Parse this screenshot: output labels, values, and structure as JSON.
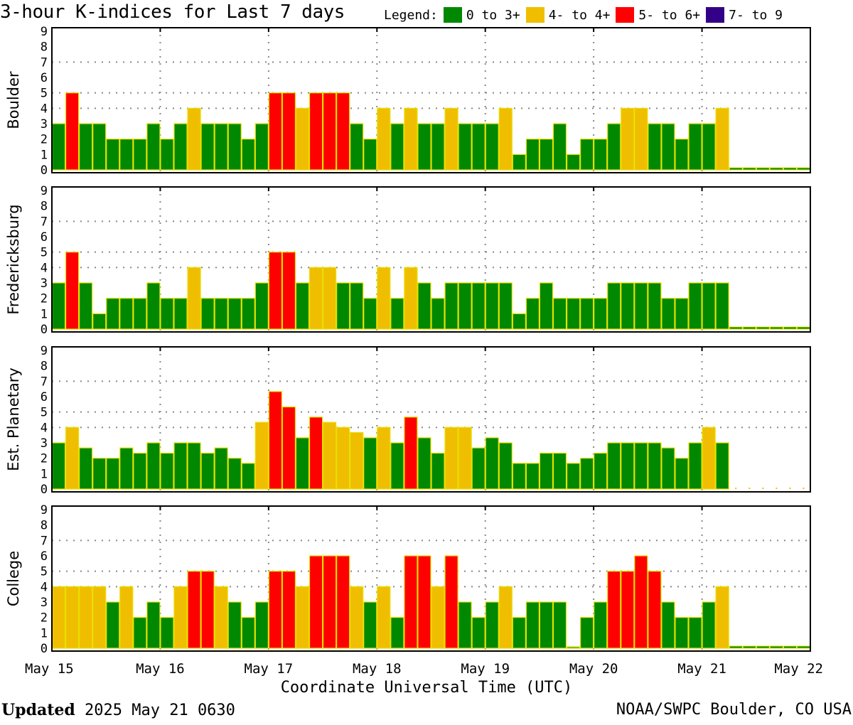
{
  "title": "3-hour K-indices for Last 7 days",
  "legend": {
    "label": "Legend:",
    "items": [
      {
        "label": "0 to 3+",
        "color": "#008800"
      },
      {
        "label": "4- to 4+",
        "color": "#f0be00"
      },
      {
        "label": "5- to 6+",
        "color": "#ff0000"
      },
      {
        "label": "7- to 9",
        "color": "#330088"
      }
    ]
  },
  "footer": {
    "updated_label": "Updated",
    "updated_value": "2025 May 21 0630",
    "credit": "NOAA/SWPC Boulder, CO USA"
  },
  "chart_data": {
    "type": "bar",
    "title": "3-hour K-indices for Last 7 days",
    "xlabel": "Coordinate Universal Time (UTC)",
    "x_ticks": [
      "May 15",
      "May 16",
      "May 17",
      "May 18",
      "May 19",
      "May 20",
      "May 21",
      "May 22"
    ],
    "y_ticks": [
      "0",
      "1",
      "2",
      "3",
      "4",
      "5",
      "6",
      "7",
      "8",
      "9"
    ],
    "ylim": [
      0,
      9
    ],
    "bins_per_day": 8,
    "total_bins": 56,
    "panels": [
      {
        "name": "Boulder",
        "values": [
          3,
          5,
          3,
          3,
          2,
          2,
          2,
          3,
          2,
          3,
          4,
          3,
          3,
          3,
          2,
          3,
          5,
          5,
          4,
          5,
          5,
          5,
          3,
          2,
          4,
          3,
          4,
          3,
          3,
          4,
          3,
          3,
          3,
          4,
          1,
          2,
          2,
          3,
          1,
          2,
          2,
          3,
          4,
          4,
          3,
          3,
          2,
          3,
          3,
          4
        ]
      },
      {
        "name": "Fredericksburg",
        "values": [
          3,
          5,
          3,
          1,
          2,
          2,
          2,
          3,
          2,
          2,
          4,
          2,
          2,
          2,
          2,
          3,
          5,
          5,
          3,
          4,
          4,
          3,
          3,
          2,
          4,
          2,
          4,
          3,
          2,
          3,
          3,
          3,
          3,
          3,
          1,
          2,
          3,
          2,
          2,
          2,
          2,
          3,
          3,
          3,
          3,
          2,
          2,
          3,
          3,
          3
        ]
      },
      {
        "name": "Est. Planetary",
        "values": [
          3,
          4,
          2.67,
          2,
          2,
          2.67,
          2.33,
          3,
          2.33,
          3,
          3,
          2.33,
          2.67,
          2,
          1.67,
          4.33,
          6.33,
          5.33,
          3.33,
          4.67,
          4.33,
          4,
          3.67,
          3.33,
          4,
          3,
          4.67,
          3.33,
          2.33,
          4,
          4,
          2.67,
          3.33,
          3,
          1.67,
          1.67,
          2.33,
          2.33,
          1.67,
          2,
          2.33,
          3,
          3,
          3,
          3,
          2.67,
          2,
          3,
          4,
          3
        ]
      },
      {
        "name": "College",
        "values": [
          4,
          4,
          4,
          4,
          3,
          4,
          2,
          3,
          2,
          4,
          5,
          5,
          4,
          3,
          2,
          3,
          5,
          5,
          4,
          6,
          6,
          6,
          4,
          3,
          4,
          2,
          6,
          6,
          4,
          6,
          3,
          2,
          3,
          4,
          2,
          3,
          3,
          3,
          0,
          2,
          3,
          5,
          5,
          6,
          5,
          3,
          2,
          2,
          3,
          4
        ]
      }
    ]
  }
}
